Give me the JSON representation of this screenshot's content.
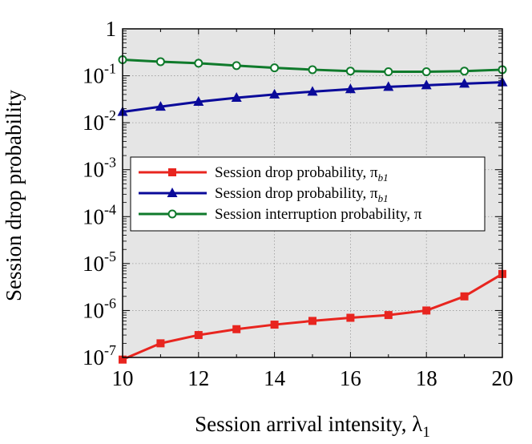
{
  "chart_data": {
    "type": "line",
    "xlabel": "Session arrival intensity, λ",
    "xlabel_sub": "1",
    "ylabel": "Session drop probability",
    "xlim": [
      10,
      20
    ],
    "ylim": [
      1e-07,
      1
    ],
    "yscale": "log",
    "grid": true,
    "legend_position": "center",
    "x_ticks": [
      {
        "value": 10,
        "label": "10"
      },
      {
        "value": 12,
        "label": "12"
      },
      {
        "value": 14,
        "label": "14"
      },
      {
        "value": 16,
        "label": "16"
      },
      {
        "value": 18,
        "label": "18"
      },
      {
        "value": 20,
        "label": "20"
      }
    ],
    "y_ticks": [
      {
        "exp": 0,
        "base": "1",
        "sup": ""
      },
      {
        "exp": -1,
        "base": "10",
        "sup": "-1"
      },
      {
        "exp": -2,
        "base": "10",
        "sup": "-2"
      },
      {
        "exp": -3,
        "base": "10",
        "sup": "-3"
      },
      {
        "exp": -4,
        "base": "10",
        "sup": "-4"
      },
      {
        "exp": -5,
        "base": "10",
        "sup": "-5"
      },
      {
        "exp": -6,
        "base": "10",
        "sup": "-6"
      },
      {
        "exp": -7,
        "base": "10",
        "sup": "-7"
      }
    ],
    "x": [
      10,
      11,
      12,
      13,
      14,
      15,
      16,
      17,
      18,
      19,
      20
    ],
    "series": [
      {
        "name": "Session drop probability, π",
        "sub": "b1",
        "color": "#e8251f",
        "marker": "square",
        "values": [
          9e-08,
          2e-07,
          3e-07,
          4e-07,
          5e-07,
          6e-07,
          7e-07,
          8e-07,
          1e-06,
          2e-06,
          6e-06
        ]
      },
      {
        "name": "Session drop probability, π",
        "sub": "b1",
        "color": "#0a0a9a",
        "marker": "triangle",
        "values": [
          0.017,
          0.022,
          0.028,
          0.034,
          0.04,
          0.046,
          0.052,
          0.058,
          0.063,
          0.068,
          0.073
        ]
      },
      {
        "name": "Session interruption probability, π",
        "sub": "",
        "color": "#0f7a2b",
        "marker": "circle",
        "values": [
          0.22,
          0.2,
          0.185,
          0.165,
          0.148,
          0.135,
          0.126,
          0.122,
          0.122,
          0.126,
          0.135
        ]
      }
    ]
  }
}
